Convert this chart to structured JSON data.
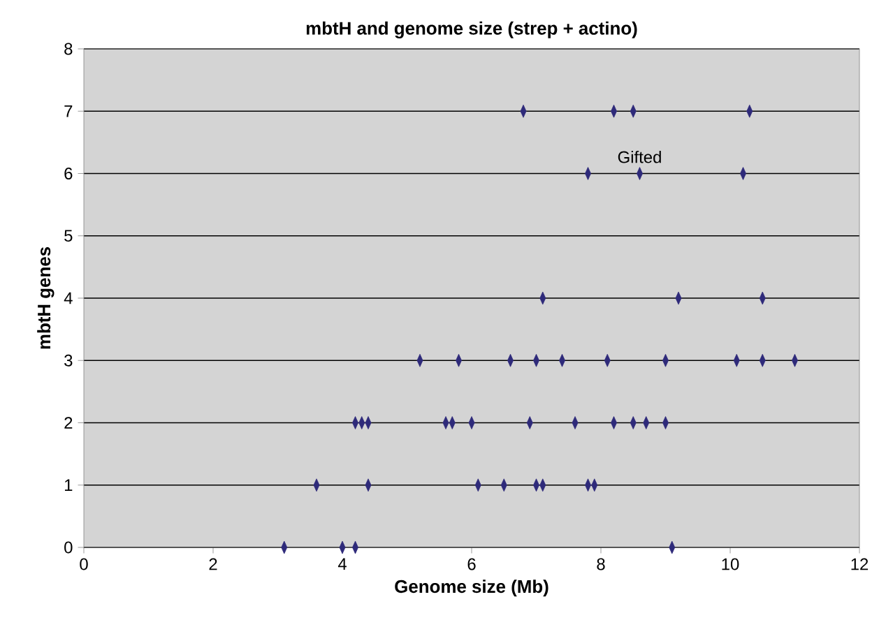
{
  "chart_data": {
    "type": "scatter",
    "title": "mbtH and genome size (strep + actino)",
    "xlabel": "Genome size (Mb)",
    "ylabel": "mbtH genes",
    "x": [
      3.1,
      4.0,
      4.2,
      9.1,
      3.6,
      4.4,
      6.1,
      6.5,
      7.0,
      7.1,
      7.8,
      7.9,
      4.2,
      4.3,
      4.4,
      5.6,
      5.7,
      6.0,
      6.9,
      7.6,
      8.2,
      8.5,
      8.7,
      9.0,
      5.2,
      5.8,
      6.6,
      7.0,
      7.4,
      8.1,
      9.0,
      10.1,
      10.5,
      11.0,
      7.1,
      9.2,
      10.5,
      7.8,
      8.6,
      10.2,
      6.8,
      8.2,
      8.5,
      10.3
    ],
    "values": [
      0,
      0,
      0,
      0,
      1,
      1,
      1,
      1,
      1,
      1,
      1,
      1,
      2,
      2,
      2,
      2,
      2,
      2,
      2,
      2,
      2,
      2,
      2,
      2,
      3,
      3,
      3,
      3,
      3,
      3,
      3,
      3,
      3,
      3,
      4,
      4,
      4,
      6,
      6,
      6,
      7,
      7,
      7,
      7
    ],
    "color": "#2e2a7a",
    "marker": "diamond",
    "grid": "y",
    "xlim": [
      0,
      12
    ],
    "xticks": [
      0,
      2,
      4,
      6,
      8,
      10,
      12
    ],
    "ylim": [
      0,
      8
    ],
    "yticks": [
      0,
      1,
      2,
      3,
      4,
      5,
      6,
      7,
      8
    ],
    "annotations": [
      {
        "text": "Gifted",
        "x": 8.6,
        "y": 6
      }
    ]
  }
}
